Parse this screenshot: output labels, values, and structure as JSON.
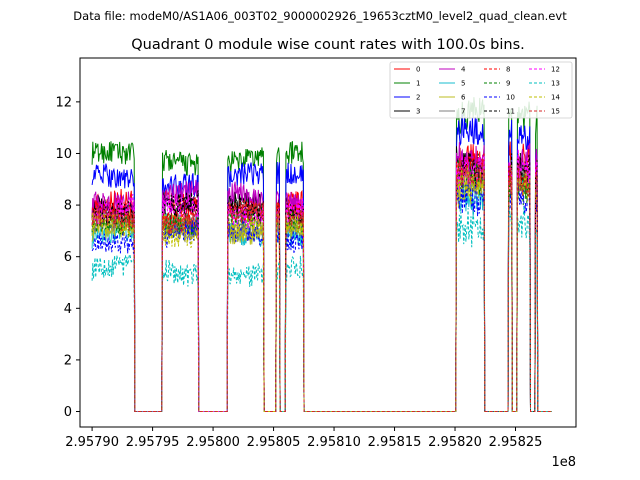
{
  "chart_data": {
    "type": "line",
    "suptitle": "Data file: modeM0/AS1A06_003T02_9000002926_19653cztM0_level2_quad_clean.evt",
    "title": "Quadrant 0 module wise count rates with 100.0s bins.",
    "xlabel": "",
    "ylabel": "",
    "x_offset_label": "1e8",
    "xlim": [
      2.95789,
      2.9583
    ],
    "ylim": [
      -0.6,
      13.7
    ],
    "x_ticks": [
      2.9579,
      2.95795,
      2.958,
      2.95805,
      2.9581,
      2.95815,
      2.9582,
      2.95825
    ],
    "x_tick_labels": [
      "2.95790",
      "2.95795",
      "2.95800",
      "2.95805",
      "2.95810",
      "2.95815",
      "2.95820",
      "2.95825"
    ],
    "y_ticks": [
      0,
      2,
      4,
      6,
      8,
      10,
      12
    ],
    "y_tick_labels": [
      "0",
      "2",
      "4",
      "6",
      "8",
      "10",
      "12"
    ],
    "legend_location": "top-right",
    "legend_columns": 4,
    "active_intervals": [
      [
        2.9579,
        2.957935
      ],
      [
        2.957958,
        2.957988
      ],
      [
        2.958012,
        2.958042
      ],
      [
        2.958052,
        2.958055
      ],
      [
        2.95806,
        2.958075
      ],
      [
        2.958201,
        2.958224
      ],
      [
        2.958244,
        2.958247
      ],
      [
        2.958251,
        2.958262
      ],
      [
        2.958266,
        2.958268
      ]
    ],
    "series": [
      {
        "name": "0",
        "color": "#ff0000",
        "dash": "solid",
        "level": 8.0
      },
      {
        "name": "1",
        "color": "#008000",
        "dash": "solid",
        "level": 9.8
      },
      {
        "name": "2",
        "color": "#0000ff",
        "dash": "solid",
        "level": 9.0
      },
      {
        "name": "3",
        "color": "#000000",
        "dash": "solid",
        "level": 7.9
      },
      {
        "name": "4",
        "color": "#bf00bf",
        "dash": "solid",
        "level": 8.3
      },
      {
        "name": "5",
        "color": "#17becf",
        "dash": "solid",
        "level": 7.0
      },
      {
        "name": "6",
        "color": "#bcbd22",
        "dash": "solid",
        "level": 7.1
      },
      {
        "name": "7",
        "color": "#7f7f7f",
        "dash": "solid",
        "level": 7.2
      },
      {
        "name": "8",
        "color": "#ff0000",
        "dash": "dashed",
        "level": 7.6
      },
      {
        "name": "9",
        "color": "#008000",
        "dash": "dashed",
        "level": 7.3
      },
      {
        "name": "10",
        "color": "#0000ff",
        "dash": "dashed",
        "level": 6.8
      },
      {
        "name": "11",
        "color": "#000000",
        "dash": "dashed",
        "level": 7.9
      },
      {
        "name": "12",
        "color": "#ff00ff",
        "dash": "dashed",
        "level": 7.8
      },
      {
        "name": "13",
        "color": "#00bfbf",
        "dash": "dashed",
        "level": 5.4
      },
      {
        "name": "14",
        "color": "#bfbf00",
        "dash": "dashed",
        "level": 7.0
      },
      {
        "name": "15",
        "color": "#d62728",
        "dash": "dashed",
        "level": 7.5
      }
    ]
  }
}
